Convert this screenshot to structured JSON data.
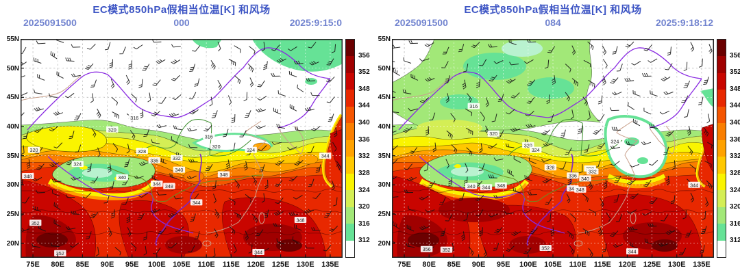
{
  "chart_data": {
    "type": "filled-contour-map",
    "model": "EC",
    "variable": "850hPa pseudo-equivalent potential temperature [K] with wind field (barbs)",
    "title": "EC模式850hPa假相当位温[K] 和风场",
    "lon_range": [
      72.5,
      135.5
    ],
    "lat_range": [
      17.5,
      55
    ],
    "contour_interval": 4,
    "contour_levels": [
      312,
      316,
      320,
      324,
      328,
      332,
      336,
      340,
      344,
      348,
      352,
      356
    ],
    "legend_position": "right",
    "grid": "dashed 5-degree graticule",
    "panel_summary": [
      {
        "init": "2025091500",
        "forecast_hour": "000",
        "valid": "2025:9:15:0"
      },
      {
        "init": "2025091500",
        "forecast_hour": "084",
        "valid": "2025:9:18:12"
      }
    ]
  },
  "panels": [
    {
      "title": "EC模式850hPa假相当位温[K] 和风场",
      "init_time": "2025091500",
      "forecast_hour": "000",
      "valid_time": "2025:9:15:0",
      "contour_labels": [
        {
          "v": "316",
          "lon": 95.5,
          "lat": 41.5
        },
        {
          "v": "320",
          "lon": 91,
          "lat": 39.5
        },
        {
          "v": "320",
          "lon": 75.2,
          "lat": 36
        },
        {
          "v": "324",
          "lon": 84,
          "lat": 33.6
        },
        {
          "v": "328",
          "lon": 97,
          "lat": 35.8
        },
        {
          "v": "316",
          "lon": 110.5,
          "lat": 38.3
        },
        {
          "v": "320",
          "lon": 112,
          "lat": 36.6
        },
        {
          "v": "324",
          "lon": 119,
          "lat": 36
        },
        {
          "v": "336",
          "lon": 99.5,
          "lat": 34.2
        },
        {
          "v": "332",
          "lon": 104,
          "lat": 34.6
        },
        {
          "v": "340",
          "lon": 104.5,
          "lat": 32.6
        },
        {
          "v": "344",
          "lon": 100,
          "lat": 30.2
        },
        {
          "v": "348",
          "lon": 102.5,
          "lat": 29.8
        },
        {
          "v": "348",
          "lon": 74,
          "lat": 31.5
        },
        {
          "v": "340",
          "lon": 93,
          "lat": 31.3
        },
        {
          "v": "344",
          "lon": 108,
          "lat": 27
        },
        {
          "v": "348",
          "lon": 113.5,
          "lat": 31.8
        },
        {
          "v": "344",
          "lon": 120.5,
          "lat": 18.5
        },
        {
          "v": "352",
          "lon": 75.5,
          "lat": 23.5
        },
        {
          "v": "352",
          "lon": 80.5,
          "lat": 18.3
        },
        {
          "v": "344",
          "lon": 134,
          "lat": 35
        },
        {
          "v": "348",
          "lon": 129,
          "lat": 24
        }
      ]
    },
    {
      "title": "EC模式850hPa假相当位温[K] 和风场",
      "init_time": "2025091500",
      "forecast_hour": "084",
      "valid_time": "2025:9:18:12",
      "contour_labels": [
        {
          "v": "316",
          "lon": 89,
          "lat": 43.5
        },
        {
          "v": "320",
          "lon": 93,
          "lat": 38.8
        },
        {
          "v": "320",
          "lon": 100,
          "lat": 36.8
        },
        {
          "v": "324",
          "lon": 101.5,
          "lat": 36
        },
        {
          "v": "320",
          "lon": 112.5,
          "lat": 32.8
        },
        {
          "v": "332",
          "lon": 113,
          "lat": 32.3
        },
        {
          "v": "336",
          "lon": 109,
          "lat": 31.6
        },
        {
          "v": "340",
          "lon": 111.5,
          "lat": 31.1
        },
        {
          "v": "344",
          "lon": 109,
          "lat": 29.4
        },
        {
          "v": "348",
          "lon": 110.5,
          "lat": 29.2
        },
        {
          "v": "340",
          "lon": 88.5,
          "lat": 29.8
        },
        {
          "v": "344",
          "lon": 91.5,
          "lat": 29.6
        },
        {
          "v": "348",
          "lon": 94.5,
          "lat": 29.9
        },
        {
          "v": "352",
          "lon": 83.5,
          "lat": 18.9
        },
        {
          "v": "356",
          "lon": 79.5,
          "lat": 19
        },
        {
          "v": "352",
          "lon": 103.5,
          "lat": 19.2
        },
        {
          "v": "344",
          "lon": 121,
          "lat": 18.6
        },
        {
          "v": "344",
          "lon": 133.5,
          "lat": 30
        },
        {
          "v": "328",
          "lon": 104.5,
          "lat": 33
        },
        {
          "v": "324",
          "lon": 117.5,
          "lat": 37.5
        }
      ]
    }
  ],
  "axes": {
    "lat_labels": [
      "55N",
      "50N",
      "45N",
      "40N",
      "35N",
      "30N",
      "25N",
      "20N"
    ],
    "lon_labels": [
      "75E",
      "80E",
      "85E",
      "90E",
      "95E",
      "100E",
      "105E",
      "110E",
      "115E",
      "120E",
      "125E",
      "130E",
      "135E"
    ]
  },
  "legend": {
    "values": [
      "356",
      "352",
      "348",
      "344",
      "340",
      "336",
      "332",
      "328",
      "324",
      "320",
      "316",
      "312"
    ],
    "colors": [
      "#6b0000",
      "#a00000",
      "#c90500",
      "#e82800",
      "#f55500",
      "#fa7e00",
      "#ffa200",
      "#ffc800",
      "#faf400",
      "#d4ee55",
      "#a2e878",
      "#66e296",
      "#ffffff"
    ]
  },
  "ui_colors": {
    "title": "#3d55c4",
    "meta": "#7183cf",
    "border_purple": "#8a2be2",
    "river_green": "#3f8f2f",
    "river_olive": "#6b8e23",
    "river_violet": "#7a22cc",
    "coast_tan": "#c9a18c",
    "barb": "#111111"
  }
}
